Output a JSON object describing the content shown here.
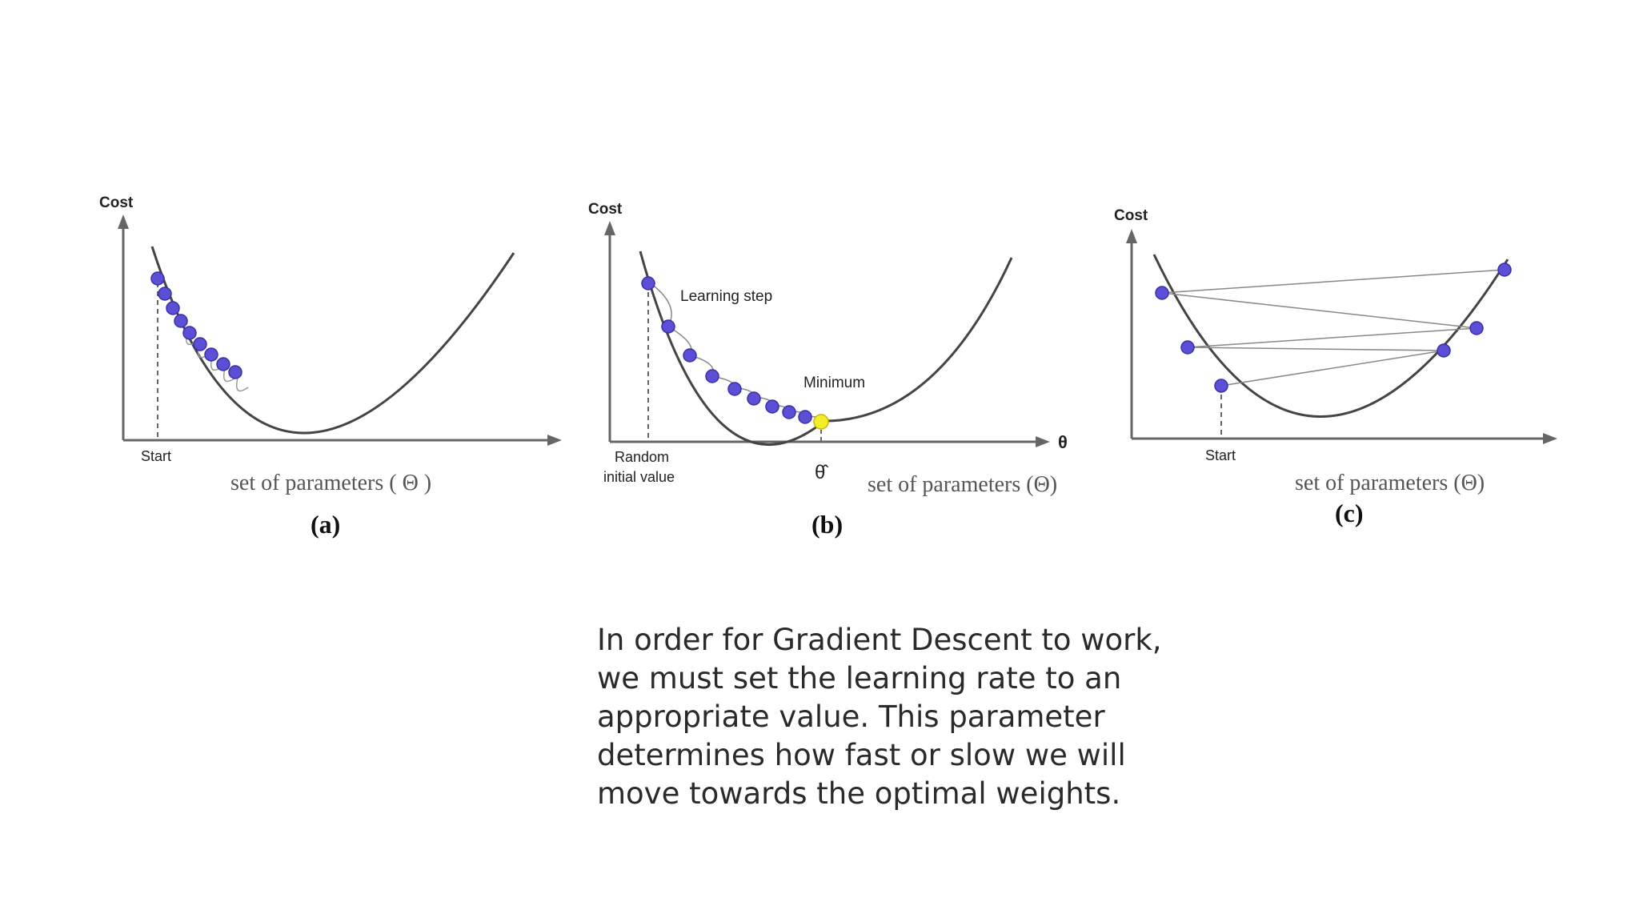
{
  "panels": [
    {
      "cost_label": "Cost",
      "start_label": "Start",
      "x_axis_label": "set of parameters ( Θ )",
      "caption": "(a)"
    },
    {
      "cost_label": "Cost",
      "learning_step_label": "Learning step",
      "minimum_label": "Minimum",
      "start_label_line1": "Random",
      "start_label_line2": "initial value",
      "theta_hat_label": "θ̂",
      "theta_axis_label": "θ",
      "x_axis_label": "set of parameters (Θ)",
      "caption": "(b)"
    },
    {
      "cost_label": "Cost",
      "start_label": "Start",
      "x_axis_label": "set of parameters (Θ)",
      "caption": "(c)"
    }
  ],
  "colors": {
    "point": "#5b4fd6",
    "point_stroke": "#3a2fa8",
    "minimum_point": "#f3ee2a",
    "curve": "#444444",
    "axis": "#666666"
  },
  "body_text": "In order for Gradient Descent to work, we must set the learning rate to an appropriate value. This parameter determines how fast or slow we will move towards the optimal weights."
}
